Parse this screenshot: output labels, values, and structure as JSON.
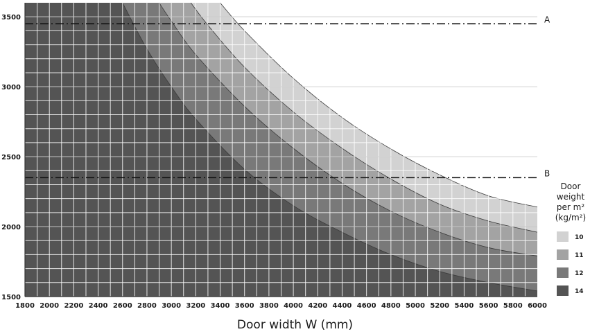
{
  "chart_data": {
    "type": "area",
    "xlabel": "Door width W (mm)",
    "ylabel": "",
    "xlim": [
      1800,
      6000
    ],
    "ylim": [
      1500,
      3600
    ],
    "x_ticks": [
      "1800",
      "2000",
      "2200",
      "2400",
      "2600",
      "2800",
      "3000",
      "3200",
      "3400",
      "3600",
      "3800",
      "4000",
      "4200",
      "4400",
      "4600",
      "4800",
      "5000",
      "5200",
      "5400",
      "5600",
      "5800",
      "6000"
    ],
    "y_ticks": [
      "1500",
      "2000",
      "2500",
      "3000",
      "3500"
    ],
    "grid": true,
    "reference_lines": [
      {
        "label": "A",
        "y": 3450
      },
      {
        "label": "B",
        "y": 2350
      }
    ],
    "legend": {
      "title_lines": [
        "Door",
        "weight",
        "per m²",
        "(kg/m²)"
      ],
      "placement": "right"
    },
    "series": [
      {
        "name": "10",
        "color": "#d2d2d2",
        "x": [
          3400,
          3600,
          4000,
          4400,
          4800,
          5200,
          5600,
          6000
        ],
        "y": [
          3600,
          3400,
          3060,
          2780,
          2555,
          2370,
          2220,
          2140
        ]
      },
      {
        "name": "11",
        "color": "#a3a3a3",
        "x": [
          3160,
          3300,
          3600,
          4000,
          4400,
          4800,
          5200,
          5600,
          6000
        ],
        "y": [
          3600,
          3440,
          3140,
          2820,
          2560,
          2340,
          2160,
          2040,
          1960
        ]
      },
      {
        "name": "12",
        "color": "#797979",
        "x": [
          2900,
          3000,
          3200,
          3600,
          4000,
          4400,
          4800,
          5200,
          5600,
          6000
        ],
        "y": [
          3600,
          3470,
          3230,
          2860,
          2560,
          2310,
          2110,
          1960,
          1850,
          1790
        ]
      },
      {
        "name": "14",
        "color": "#545454",
        "x": [
          2600,
          2800,
          3000,
          3200,
          3600,
          4000,
          4400,
          4800,
          5200,
          5600,
          6000
        ],
        "y": [
          3600,
          3270,
          3000,
          2770,
          2410,
          2150,
          1960,
          1800,
          1680,
          1600,
          1540
        ]
      }
    ]
  }
}
